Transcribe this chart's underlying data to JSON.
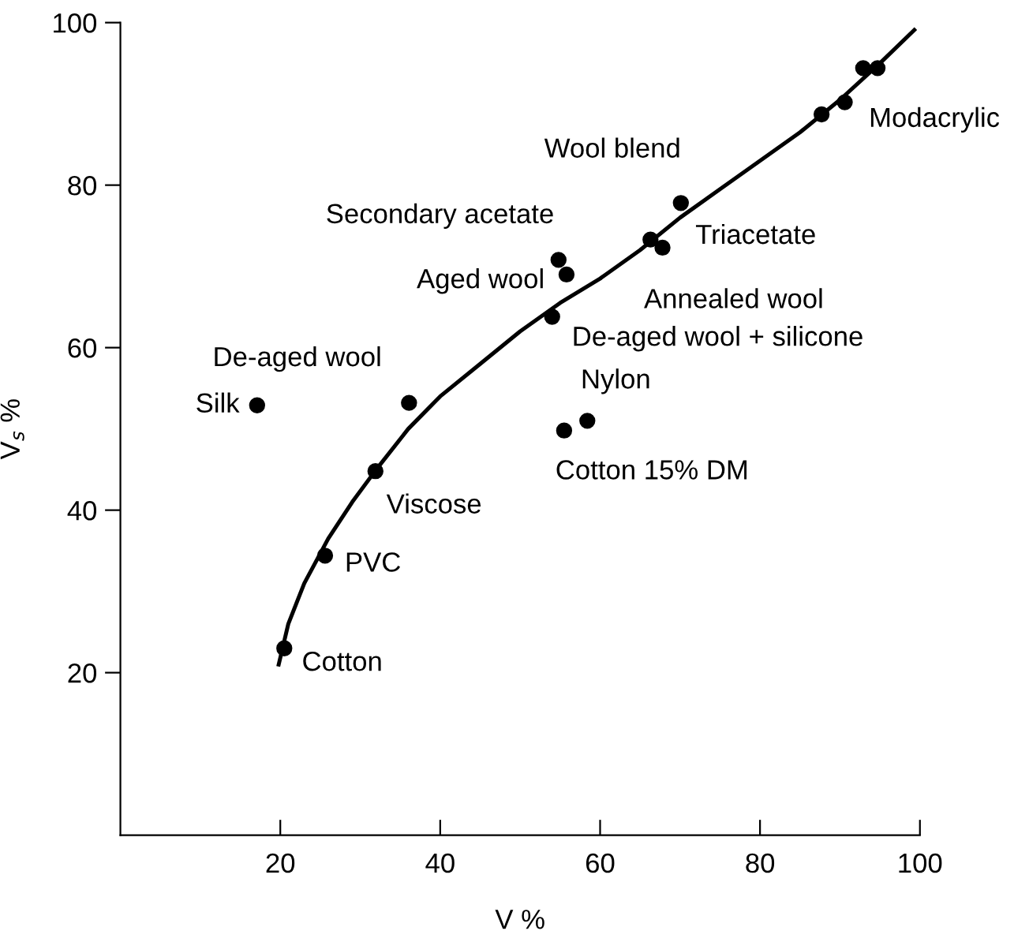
{
  "chart_data": {
    "type": "scatter",
    "xlabel": "V %",
    "ylabel": "V$_{s}$ %",
    "xlim": [
      0,
      100
    ],
    "ylim": [
      0,
      100
    ],
    "xticks": [
      20,
      40,
      60,
      80,
      100
    ],
    "yticks": [
      20,
      40,
      60,
      80,
      100
    ],
    "series": [
      {
        "marker": "circle",
        "color": "#000000",
        "x": [
          20.5,
          25.6,
          31.9,
          17.1,
          36.1,
          54.8,
          55.8,
          54.0,
          58.4,
          55.5,
          70.1,
          67.8,
          66.3,
          90.6,
          92.9,
          94.7,
          87.7
        ],
        "values": [
          23.0,
          34.4,
          44.8,
          52.9,
          53.2,
          70.8,
          69.0,
          63.8,
          51.0,
          49.8,
          77.8,
          72.3,
          73.3,
          90.2,
          94.4,
          94.4,
          88.7
        ]
      },
      {
        "type": "line",
        "color": "#000000",
        "x": [
          19.8,
          21,
          23,
          26,
          29,
          32,
          36,
          40,
          45,
          50,
          55,
          60,
          65,
          70,
          75,
          80,
          85,
          90,
          95,
          99.3
        ],
        "values": [
          21,
          26,
          31,
          36.5,
          41,
          45,
          50,
          54,
          58,
          62,
          65.5,
          68.5,
          72,
          76,
          79.5,
          83,
          86.5,
          90.5,
          95,
          99.1
        ]
      }
    ],
    "annotations": [
      {
        "text": "Cotton",
        "x": 20.5,
        "y": 23.0
      },
      {
        "text": "PVC",
        "x": 25.6,
        "y": 34.4
      },
      {
        "text": "Viscose",
        "x": 31.9,
        "y": 44.8
      },
      {
        "text": "Silk",
        "x": 17.1,
        "y": 52.9
      },
      {
        "text": "De-aged wool",
        "x": 36.1,
        "y": 53.2
      },
      {
        "text": "Secondary acetate",
        "x": 54.8,
        "y": 70.8
      },
      {
        "text": "Aged wool",
        "x": 55.8,
        "y": 69.0
      },
      {
        "text": "De-aged wool + silicone",
        "x": 54.0,
        "y": 63.8
      },
      {
        "text": "Nylon",
        "x": 58.4,
        "y": 51.0
      },
      {
        "text": "Cotton 15% DM",
        "x": 55.5,
        "y": 49.8
      },
      {
        "text": "Wool blend",
        "x": 70.1,
        "y": 77.8
      },
      {
        "text": "Triacetate",
        "x": 67.8,
        "y": 72.3
      },
      {
        "text": "Annealed wool",
        "x": 66.3,
        "y": 73.3
      },
      {
        "text": "Modacrylic",
        "x": 90.6,
        "y": 90.2
      }
    ]
  }
}
